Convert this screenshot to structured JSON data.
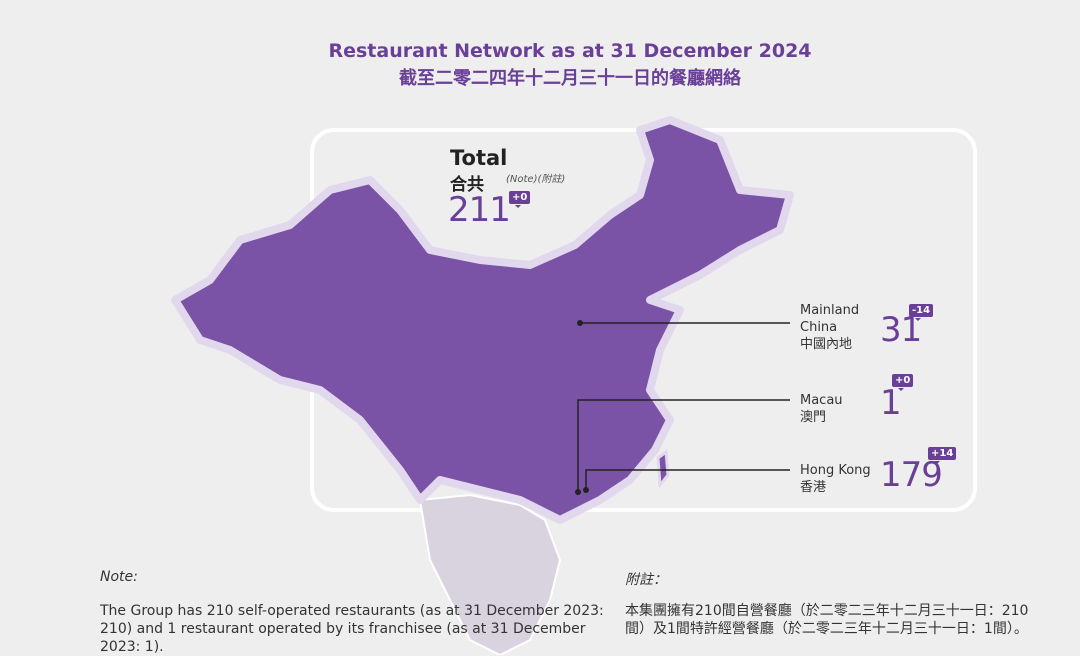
{
  "title": {
    "en": "Restaurant Network as at 31 December 2024",
    "zh": "截至二零二四年十二月三十一日的餐廳網絡"
  },
  "colors": {
    "accent": "#6a3f98",
    "map_fill": "#7a52a6",
    "background": "#efeeee"
  },
  "total": {
    "label_en": "Total",
    "label_zh": "合共",
    "note_ref": "(Note)(附註)",
    "value": "211",
    "change": "+0"
  },
  "regions": [
    {
      "name_en": "Mainland",
      "name_en2": "China",
      "name_zh": "中國內地",
      "value": "31",
      "change": "-14"
    },
    {
      "name_en": "Macau",
      "name_zh": "澳門",
      "value": "1",
      "change": "+0"
    },
    {
      "name_en": "Hong Kong",
      "name_zh": "香港",
      "value": "179",
      "change": "+14"
    }
  ],
  "note": {
    "heading_en": "Note:",
    "body_en": "The Group has 210 self-operated restaurants (as at 31 December 2023: 210) and 1 restaurant operated by its franchisee (as at 31 December 2023: 1).",
    "heading_zh": "附註：",
    "body_zh": "本集團擁有210間自營餐廳（於二零二三年十二月三十一日：210間）及1間特許經營餐廳（於二零二三年十二月三十一日：1間）。"
  }
}
